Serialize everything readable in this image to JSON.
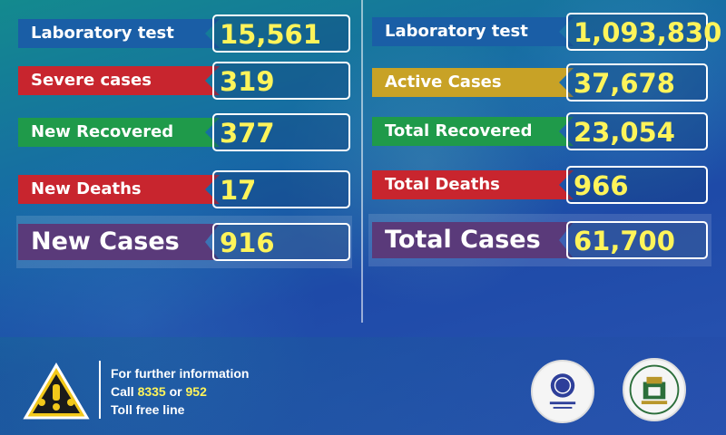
{
  "left_stats": [
    {
      "label": "Laboratory test",
      "value": "15,561",
      "color": "#1a5ea6"
    },
    {
      "label": "Severe cases",
      "value": "319",
      "color": "#c8252e"
    },
    {
      "label": "New Recovered",
      "value": "377",
      "color": "#1f9a4a"
    },
    {
      "label": "New Deaths",
      "value": "17",
      "color": "#c8252e"
    }
  ],
  "left_total": {
    "label": "New Cases",
    "value": "916",
    "color": "#5a3a7a"
  },
  "right_stats": [
    {
      "label": "Laboratory test",
      "value": "1,093,830",
      "color": "#1a5ea6"
    },
    {
      "label": "Active Cases",
      "value": "37,678",
      "color": "#c8a226"
    },
    {
      "label": "Total Recovered",
      "value": "23,054",
      "color": "#1f9a4a"
    },
    {
      "label": "Total Deaths",
      "value": "966",
      "color": "#c8252e"
    }
  ],
  "right_total": {
    "label": "Total Cases",
    "value": "61,700",
    "color": "#5a3a7a"
  },
  "footer": {
    "line1": "For further information",
    "line2_prefix": "Call ",
    "number1": "8335",
    "line2_mid": " or ",
    "number2": "952",
    "line3": "Toll free line",
    "warning_icon": "warning-triangle-icon"
  },
  "colors": {
    "value_text": "#fff45a",
    "accent_red": "#c8252e",
    "accent_green": "#1f9a4a"
  }
}
